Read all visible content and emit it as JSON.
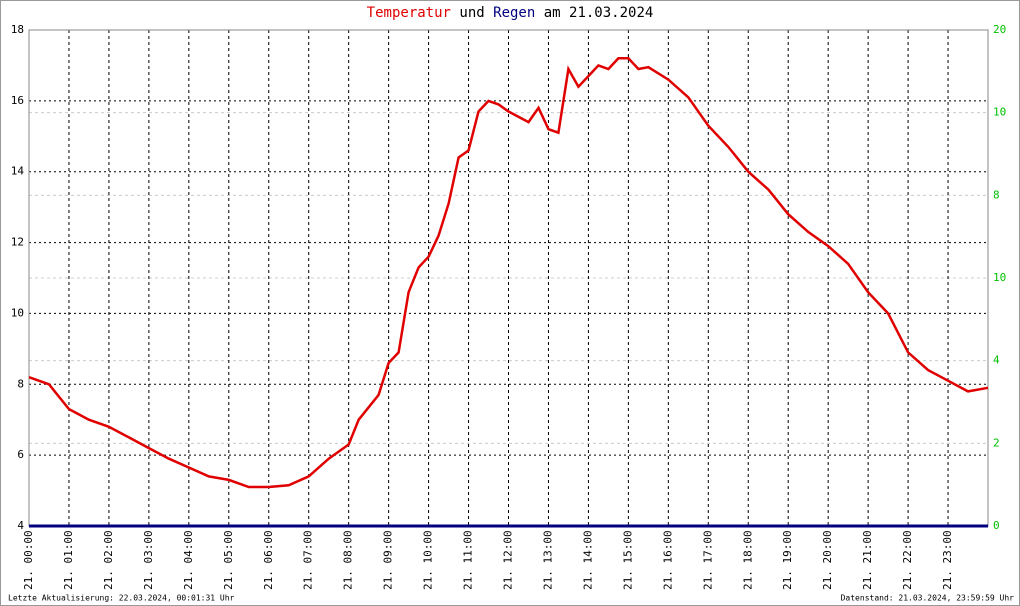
{
  "chart_data": {
    "type": "line",
    "title_and": "und",
    "title_date": "am 21.03.2024",
    "footer_left": "Letzte Aktualisierung: 22.03.2024, 00:01:31 Uhr",
    "footer_right": "Datenstand: 21.03.2024, 23:59:59 Uhr",
    "x": [
      0,
      0.5,
      1,
      1.5,
      2,
      2.5,
      3,
      3.5,
      4,
      4.5,
      5,
      5.5,
      6,
      6.5,
      7,
      7.5,
      8,
      8.25,
      8.75,
      9,
      9.25,
      9.5,
      9.75,
      10,
      10.25,
      10.5,
      10.75,
      11,
      11.25,
      11.5,
      11.75,
      12,
      12.5,
      12.75,
      13,
      13.25,
      13.5,
      13.75,
      14,
      14.25,
      14.5,
      14.75,
      15,
      15.25,
      15.5,
      16,
      16.5,
      17,
      17.5,
      18,
      18.5,
      19,
      19.5,
      20,
      20.5,
      21,
      21.5,
      22,
      22.5,
      23,
      23.5,
      24
    ],
    "series": [
      {
        "name": "Temperatur",
        "color": "#e00000",
        "values": [
          8.2,
          8.0,
          7.3,
          7.0,
          6.8,
          6.5,
          6.2,
          5.9,
          5.65,
          5.4,
          5.3,
          5.1,
          5.1,
          5.15,
          5.4,
          5.9,
          6.3,
          7.0,
          7.7,
          8.6,
          8.9,
          10.6,
          11.3,
          11.6,
          12.2,
          13.1,
          14.4,
          14.6,
          15.7,
          16.0,
          15.9,
          15.7,
          15.4,
          15.8,
          15.2,
          15.1,
          16.9,
          16.4,
          16.7,
          17.0,
          16.9,
          17.2,
          17.2,
          16.9,
          16.95,
          16.6,
          16.1,
          15.3,
          14.7,
          14.0,
          13.5,
          12.8,
          12.3,
          11.9,
          11.4,
          10.6,
          10.0,
          8.9,
          8.4,
          8.1,
          7.8,
          7.9
        ]
      },
      {
        "name": "Regen",
        "color": "#000080",
        "axis": "y2",
        "values": [
          0,
          0,
          0,
          0,
          0,
          0,
          0,
          0,
          0,
          0,
          0,
          0,
          0,
          0,
          0,
          0,
          0,
          0,
          0,
          0,
          0,
          0,
          0,
          0,
          0,
          0,
          0,
          0,
          0,
          0,
          0,
          0,
          0,
          0,
          0,
          0,
          0,
          0,
          0,
          0,
          0,
          0,
          0,
          0,
          0,
          0,
          0,
          0,
          0,
          0,
          0,
          0,
          0,
          0,
          0,
          0,
          0,
          0,
          0,
          0,
          0,
          0
        ]
      }
    ],
    "xlim": [
      0,
      24
    ],
    "xticks": [
      {
        "value": 0,
        "label": "21. 00:00"
      },
      {
        "value": 1,
        "label": "21. 01:00"
      },
      {
        "value": 2,
        "label": "21. 02:00"
      },
      {
        "value": 3,
        "label": "21. 03:00"
      },
      {
        "value": 4,
        "label": "21. 04:00"
      },
      {
        "value": 5,
        "label": "21. 05:00"
      },
      {
        "value": 6,
        "label": "21. 06:00"
      },
      {
        "value": 7,
        "label": "21. 07:00"
      },
      {
        "value": 8,
        "label": "21. 08:00"
      },
      {
        "value": 9,
        "label": "21. 09:00"
      },
      {
        "value": 10,
        "label": "21. 10:00"
      },
      {
        "value": 11,
        "label": "21. 11:00"
      },
      {
        "value": 12,
        "label": "21. 12:00"
      },
      {
        "value": 13,
        "label": "21. 13:00"
      },
      {
        "value": 14,
        "label": "21. 14:00"
      },
      {
        "value": 15,
        "label": "21. 15:00"
      },
      {
        "value": 16,
        "label": "21. 16:00"
      },
      {
        "value": 17,
        "label": "21. 17:00"
      },
      {
        "value": 18,
        "label": "21. 18:00"
      },
      {
        "value": 19,
        "label": "21. 19:00"
      },
      {
        "value": 20,
        "label": "21. 20:00"
      },
      {
        "value": 21,
        "label": "21. 21:00"
      },
      {
        "value": 22,
        "label": "21. 22:00"
      },
      {
        "value": 23,
        "label": "21. 23:00"
      }
    ],
    "ylim": [
      4,
      18
    ],
    "yticks": [
      4,
      6,
      8,
      10,
      12,
      14,
      16,
      18
    ],
    "y2lim": [
      0,
      20
    ],
    "y2ticks": [
      0,
      {
        "value": 3.333,
        "label": "2"
      },
      {
        "value": 6.667,
        "label": "4"
      },
      10,
      {
        "value": 13.333,
        "label": "8"
      },
      {
        "value": 16.667,
        "label": "10"
      },
      20
    ],
    "y2color": "#00c000",
    "grid": true
  }
}
